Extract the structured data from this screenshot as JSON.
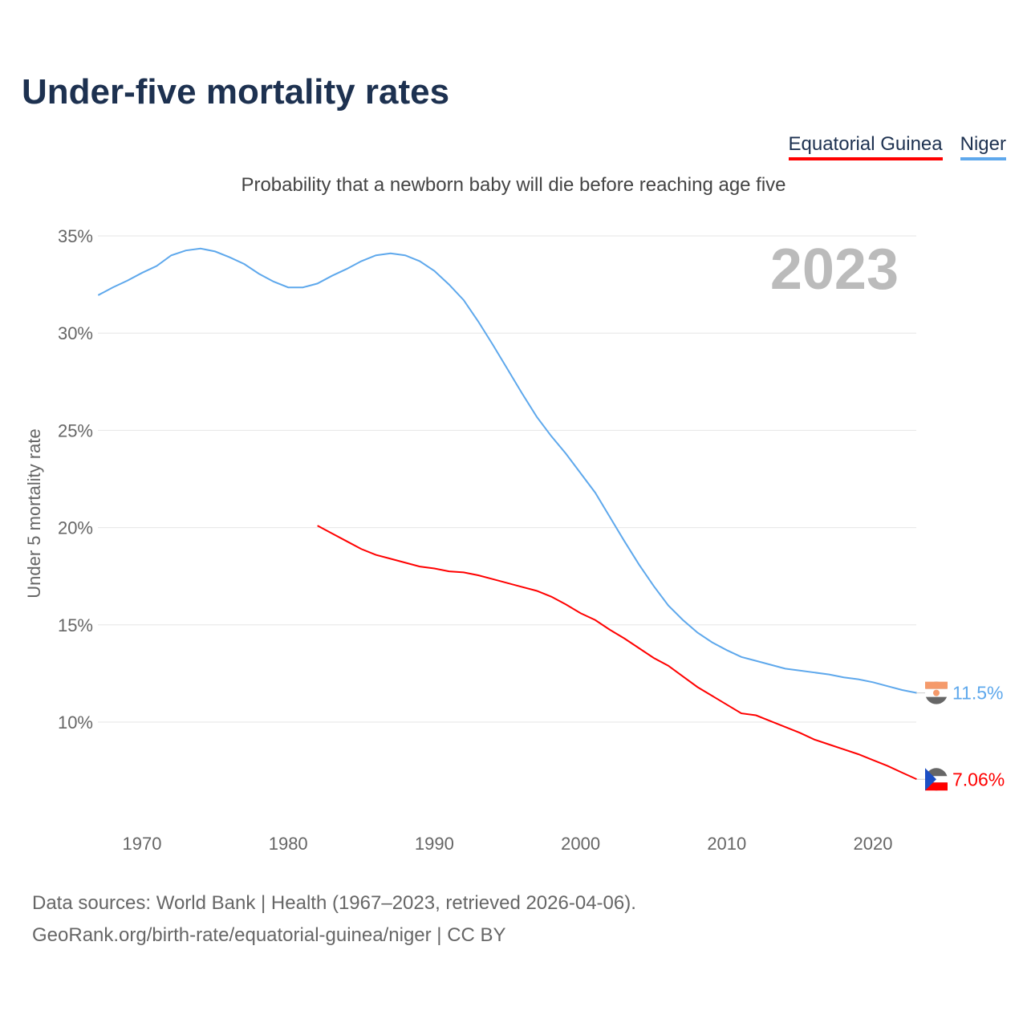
{
  "title": "Under-five mortality rates",
  "subtitle": "Probability that a newborn baby will die before reaching age five",
  "year_label": "2023",
  "legend": [
    {
      "name": "Equatorial Guinea",
      "color": "#ff0000"
    },
    {
      "name": "Niger",
      "color": "#5ea8ec"
    }
  ],
  "sources": {
    "line1": "Data sources: World Bank | Health (1967–2023, retrieved 2026-04-06).",
    "line2": "GeoRank.org/birth-rate/equatorial-guinea/niger | CC BY"
  },
  "chart_data": {
    "type": "line",
    "title": "Under-five mortality rates",
    "xlabel": "",
    "ylabel": "Under 5 mortality rate",
    "xlim": [
      1967,
      2023
    ],
    "ylim": [
      6,
      35
    ],
    "xticks": [
      1970,
      1980,
      1990,
      2000,
      2010,
      2020
    ],
    "xtick_labels": [
      "1970",
      "1980",
      "1990",
      "2000",
      "2010",
      "2020"
    ],
    "yticks": [
      10,
      15,
      20,
      25,
      30,
      35
    ],
    "ytick_labels": [
      "10%",
      "15%",
      "20%",
      "25%",
      "30%",
      "35%"
    ],
    "grid": true,
    "legend_position": "top-right",
    "series": [
      {
        "name": "Niger",
        "color": "#5ea8ec",
        "end_label": "11.5%",
        "x": [
          1967,
          1968,
          1969,
          1970,
          1971,
          1972,
          1973,
          1974,
          1975,
          1976,
          1977,
          1978,
          1979,
          1980,
          1981,
          1982,
          1983,
          1984,
          1985,
          1986,
          1987,
          1988,
          1989,
          1990,
          1991,
          1992,
          1993,
          1994,
          1995,
          1996,
          1997,
          1998,
          1999,
          2000,
          2001,
          2002,
          2003,
          2004,
          2005,
          2006,
          2007,
          2008,
          2009,
          2010,
          2011,
          2012,
          2013,
          2014,
          2015,
          2016,
          2017,
          2018,
          2019,
          2020,
          2021,
          2022,
          2023
        ],
        "values": [
          31.95,
          32.35,
          32.7,
          33.1,
          33.45,
          34.0,
          34.25,
          34.35,
          34.2,
          33.9,
          33.55,
          33.05,
          32.65,
          32.35,
          32.35,
          32.55,
          32.95,
          33.3,
          33.7,
          34.0,
          34.1,
          34.0,
          33.7,
          33.2,
          32.5,
          31.7,
          30.6,
          29.4,
          28.15,
          26.9,
          25.7,
          24.7,
          23.8,
          22.8,
          21.8,
          20.55,
          19.3,
          18.1,
          17.0,
          16.0,
          15.25,
          14.6,
          14.1,
          13.7,
          13.35,
          13.15,
          12.95,
          12.75,
          12.65,
          12.55,
          12.45,
          12.3,
          12.2,
          12.05,
          11.85,
          11.65,
          11.5
        ]
      },
      {
        "name": "Equatorial Guinea",
        "color": "#ff0000",
        "end_label": "7.06%",
        "x": [
          1982,
          1983,
          1984,
          1985,
          1986,
          1987,
          1988,
          1989,
          1990,
          1991,
          1992,
          1993,
          1994,
          1995,
          1996,
          1997,
          1998,
          1999,
          2000,
          2001,
          2002,
          2003,
          2004,
          2005,
          2006,
          2007,
          2008,
          2009,
          2010,
          2011,
          2012,
          2013,
          2014,
          2015,
          2016,
          2017,
          2018,
          2019,
          2020,
          2021,
          2022,
          2023
        ],
        "values": [
          20.1,
          19.7,
          19.3,
          18.9,
          18.6,
          18.4,
          18.2,
          18.0,
          17.9,
          17.75,
          17.7,
          17.55,
          17.35,
          17.15,
          16.95,
          16.75,
          16.45,
          16.05,
          15.6,
          15.25,
          14.75,
          14.3,
          13.8,
          13.3,
          12.9,
          12.35,
          11.8,
          11.35,
          10.9,
          10.45,
          10.35,
          10.05,
          9.75,
          9.45,
          9.1,
          8.85,
          8.6,
          8.35,
          8.05,
          7.75,
          7.4,
          7.06
        ]
      }
    ]
  }
}
